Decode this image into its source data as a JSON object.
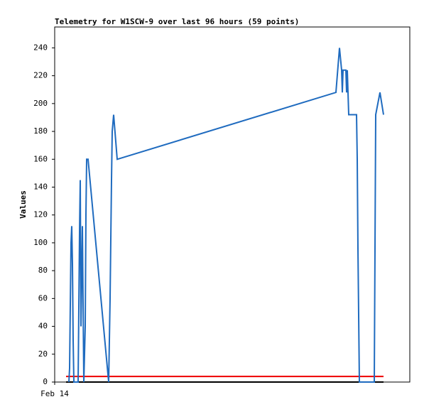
{
  "chart_data": {
    "type": "line",
    "title": "Telemetry for W1SCW-9 over last 96 hours (59 points)",
    "y_label": "Values",
    "xlim": [
      0,
      100
    ],
    "xticks": [
      {
        "value": 0,
        "label": "Feb 14"
      }
    ],
    "ylim": [
      0,
      255
    ],
    "yticks": [
      0,
      20,
      40,
      60,
      80,
      100,
      120,
      140,
      160,
      180,
      200,
      220,
      240
    ],
    "grid": false,
    "series": [
      {
        "color": "#000000",
        "x": [
          3.2,
          92.6
        ],
        "values": [
          0,
          0
        ]
      },
      {
        "color": "#ee0000",
        "x": [
          3.2,
          92.6
        ],
        "values": [
          4,
          4
        ]
      },
      {
        "color": "#1f6bbf",
        "x": [
          4,
          4.2,
          4.4,
          4.6,
          4.8,
          5,
          5.2,
          5.4,
          6.6,
          7,
          7.2,
          7.4,
          7.8,
          8.2,
          8.6,
          8.8,
          9,
          9.4,
          15.2,
          15.6,
          16,
          16.2,
          16.6,
          17.6,
          79.2,
          80.2,
          80.8,
          81,
          81.2,
          82,
          82.2,
          82.4,
          82.8,
          85,
          85.2,
          85.4,
          85.8,
          90,
          90.4,
          91.6,
          92.6
        ],
        "values": [
          0,
          10,
          56,
          100,
          112,
          85,
          30,
          0,
          0,
          108,
          145,
          40,
          112,
          0,
          40,
          120,
          160,
          160,
          0,
          60,
          145,
          180,
          192,
          160,
          208,
          240,
          224,
          208,
          224,
          224,
          208,
          224,
          192,
          192,
          160,
          96,
          0,
          0,
          192,
          208,
          192
        ]
      }
    ]
  }
}
